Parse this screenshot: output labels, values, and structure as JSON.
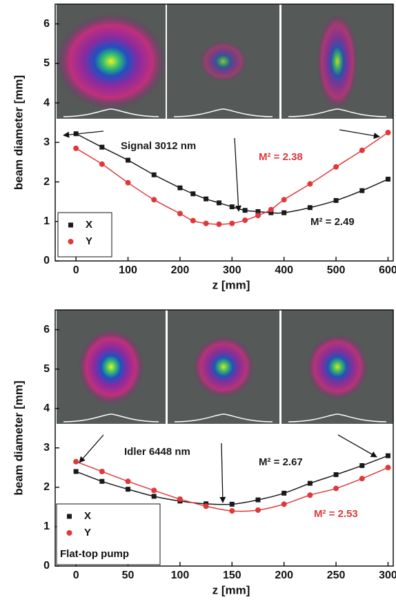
{
  "chart_data": [
    {
      "type": "scatter",
      "x_label": "z [mm]",
      "y_label": "beam diameter [mm]",
      "x": [
        0,
        50,
        100,
        150,
        200,
        225,
        250,
        275,
        300,
        325,
        350,
        375,
        400,
        450,
        500,
        550,
        600
      ],
      "series": [
        {
          "name": "X",
          "color": "#1a1a1a",
          "marker": "square",
          "values": [
            3.22,
            2.88,
            2.55,
            2.18,
            1.85,
            1.7,
            1.57,
            1.47,
            1.37,
            1.28,
            1.25,
            1.22,
            1.22,
            1.35,
            1.53,
            1.78,
            2.07
          ]
        },
        {
          "name": "Y",
          "color": "#e0383a",
          "marker": "circle",
          "values": [
            2.85,
            2.45,
            1.98,
            1.55,
            1.2,
            1.02,
            0.95,
            0.93,
            0.95,
            1.03,
            1.15,
            1.3,
            1.55,
            1.95,
            2.38,
            2.8,
            3.25
          ]
        }
      ],
      "xlim": [
        -40,
        610
      ],
      "xticks": [
        0,
        100,
        200,
        300,
        400,
        500,
        600
      ],
      "ylim": [
        0,
        6.5
      ],
      "yticks": [
        0,
        1,
        2,
        3,
        4,
        5,
        6
      ],
      "annotations": [
        {
          "text": "Signal 3012 nm",
          "color": "#1a1a1a"
        },
        {
          "text": "M² = 2.38",
          "color": "#e0383a"
        },
        {
          "text": "M² = 2.49",
          "color": "#1a1a1a"
        }
      ]
    },
    {
      "type": "scatter",
      "x_label": "z [mm]",
      "y_label": "beam diameter [mm]",
      "x": [
        0,
        25,
        50,
        75,
        100,
        125,
        150,
        175,
        200,
        225,
        250,
        275,
        300
      ],
      "series": [
        {
          "name": "X",
          "color": "#1a1a1a",
          "marker": "square",
          "values": [
            2.4,
            2.15,
            1.95,
            1.77,
            1.65,
            1.58,
            1.57,
            1.68,
            1.85,
            2.1,
            2.32,
            2.55,
            2.8
          ]
        },
        {
          "name": "Y",
          "color": "#e0383a",
          "marker": "circle",
          "values": [
            2.65,
            2.4,
            2.15,
            1.92,
            1.7,
            1.52,
            1.4,
            1.42,
            1.57,
            1.8,
            1.97,
            2.22,
            2.5
          ]
        }
      ],
      "xlim": [
        -20,
        305
      ],
      "xticks": [
        0,
        50,
        100,
        150,
        200,
        250,
        300
      ],
      "ylim": [
        0,
        6.5
      ],
      "yticks": [
        0,
        1,
        2,
        3,
        4,
        5,
        6
      ],
      "legend_note": "Flat-top pump",
      "annotations": [
        {
          "text": "Idler 6448 nm",
          "color": "#1a1a1a"
        },
        {
          "text": "M² = 2.67",
          "color": "#1a1a1a"
        },
        {
          "text": "M² = 2.53",
          "color": "#e0383a"
        }
      ]
    }
  ]
}
